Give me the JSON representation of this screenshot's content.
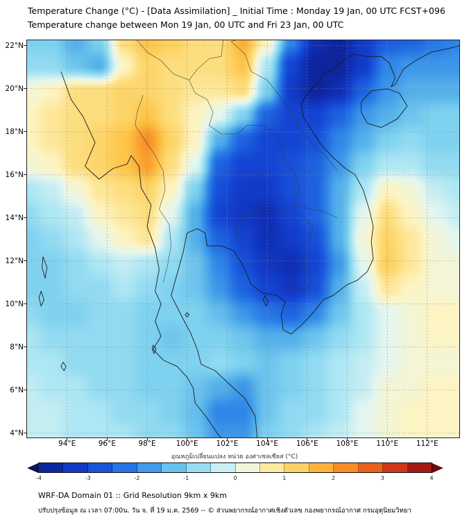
{
  "header": {
    "title_line1": "Temperature Change (°C) - [Data Assimilation] _ Initial Time : Monday 19 Jan, 00 UTC FCST+096",
    "title_line2": "Temperature change between Mon 19 Jan, 00 UTC and Fri 23 Jan, 00 UTC"
  },
  "footer": {
    "line1": "WRF-DA Domain 01 :: Grid Resolution 9km x 9km",
    "line2": "ปรับปรุงข้อมูล ณ เวลา 07:00น. วัน จ. ที่ 19 ม.ค. 2569 -- © ส่วนพยากรณ์อากาศเชิงตัวเลข กองพยากรณ์อากาศ กรมอุตุนิยมวิทยา"
  },
  "chart_data": {
    "type": "heatmap",
    "title": "Temperature change between Mon 19 Jan, 00 UTC and Fri 23 Jan, 00 UTC",
    "xlabel": "",
    "ylabel": "",
    "x_axis": {
      "tick_values": [
        94,
        96,
        98,
        100,
        102,
        104,
        106,
        108,
        110,
        112
      ],
      "tick_labels": [
        "94°E",
        "96°E",
        "98°E",
        "100°E",
        "102°E",
        "104°E",
        "106°E",
        "108°E",
        "110°E",
        "112°E"
      ],
      "range": [
        92.0,
        113.6
      ]
    },
    "y_axis": {
      "tick_values": [
        4,
        6,
        8,
        10,
        12,
        14,
        16,
        18,
        20,
        22
      ],
      "tick_labels": [
        "4°N",
        "6°N",
        "8°N",
        "10°N",
        "12°N",
        "14°N",
        "16°N",
        "18°N",
        "20°N",
        "22°N"
      ],
      "range": [
        3.8,
        22.25
      ]
    },
    "grid": {
      "lon_min": 92.0,
      "lon_max": 113.6,
      "lat_top": 22.25,
      "lat_bottom": 3.8,
      "ncols": 19,
      "nrows": 17,
      "units": "°C",
      "values": [
        [
          -1,
          -1,
          -1.5,
          -1,
          1,
          1.5,
          1.3,
          1,
          1,
          1.8,
          0.5,
          -2,
          -3.5,
          -3.8,
          -3.2,
          -2.6,
          -2.5,
          -2.2,
          -2
        ],
        [
          -0.8,
          -0.8,
          -1.2,
          -1.5,
          0.5,
          1.2,
          1,
          1,
          1,
          1.5,
          -0.5,
          -3,
          -3.8,
          -3.8,
          -3.2,
          -2,
          -1.8,
          -1.8,
          -1.8
        ],
        [
          0.3,
          0.5,
          1,
          1,
          1.2,
          1.2,
          1,
          0.8,
          0.8,
          1,
          -1,
          -3.2,
          -3.8,
          -3.5,
          -2.5,
          -1.8,
          -1.5,
          -1.5,
          -1.5
        ],
        [
          0.5,
          0.8,
          1,
          1,
          1.2,
          1.5,
          1,
          0.5,
          0,
          -1,
          -2.5,
          -3,
          -3,
          -2.5,
          -1.8,
          -1.5,
          -1.2,
          -1,
          -1
        ],
        [
          0.5,
          0.8,
          1,
          1.2,
          1.5,
          2.2,
          1.2,
          0.5,
          -1.5,
          -2.5,
          -3,
          -3,
          -2.8,
          -2,
          -1.5,
          -1,
          -0.8,
          -1,
          -1
        ],
        [
          0.3,
          0.5,
          1,
          1.2,
          1.5,
          2,
          1,
          0,
          -2.5,
          -3,
          -3,
          -2.8,
          -2.5,
          -1.8,
          -1,
          -0.5,
          -0.5,
          -0.8,
          -0.8
        ],
        [
          -0.5,
          -0.3,
          0.3,
          0.8,
          1,
          1.2,
          0.5,
          -1,
          -2.8,
          -3.2,
          -3.2,
          -2.8,
          -2.5,
          -1.5,
          -0.5,
          0.5,
          0.3,
          -0.3,
          -0.5
        ],
        [
          -0.8,
          -0.5,
          -0.3,
          0.5,
          0.8,
          1,
          0,
          -1.5,
          -3,
          -3.3,
          -3.5,
          -3,
          -2.5,
          -1.5,
          0,
          1,
          0.5,
          0,
          -0.3
        ],
        [
          -1,
          -0.8,
          -0.5,
          0,
          0.5,
          0.8,
          -0.5,
          -1.5,
          -2.5,
          -3,
          -3.5,
          -3.2,
          -2.8,
          -1.5,
          0.3,
          1.2,
          0.8,
          0.3,
          0
        ],
        [
          -1,
          -1,
          -0.8,
          -0.5,
          -0.3,
          -0.5,
          -0.8,
          -1.2,
          -2,
          -2.8,
          -3.3,
          -3.5,
          -3,
          -1.8,
          0,
          1.3,
          0.8,
          0.3,
          0.3
        ],
        [
          -1,
          -1,
          -0.8,
          -0.8,
          -0.5,
          -0.8,
          -1,
          -1.2,
          -1.8,
          -2.5,
          -3,
          -3.3,
          -2.8,
          -1.5,
          -0.3,
          0.8,
          0.5,
          0.3,
          0.3
        ],
        [
          -0.8,
          -1,
          -1,
          -0.8,
          -0.8,
          -1,
          -1,
          -1,
          -1.3,
          -1.8,
          -2.2,
          -2.5,
          -2,
          -1.2,
          -0.5,
          0,
          0.3,
          0.5,
          0.5
        ],
        [
          -0.5,
          -0.8,
          -0.8,
          -0.8,
          -0.8,
          -1,
          -1.2,
          -1,
          -1,
          -1.2,
          -1.5,
          -1.5,
          -1.2,
          -0.8,
          -0.5,
          0,
          0.3,
          0.5,
          0.5
        ],
        [
          -0.5,
          -0.5,
          -0.8,
          -0.8,
          -0.8,
          -1,
          -1,
          -1,
          -0.8,
          -1,
          -1.2,
          -1,
          -0.8,
          -0.5,
          -0.3,
          0,
          0.3,
          0.3,
          0.3
        ],
        [
          -0.3,
          -0.5,
          -0.5,
          -0.8,
          -0.8,
          -1,
          -1,
          -1.2,
          -1.5,
          -1.8,
          -1.2,
          -1,
          -0.8,
          -0.5,
          -0.3,
          0.3,
          0.3,
          0.5,
          0.5
        ],
        [
          -0.3,
          -0.3,
          -0.5,
          -0.5,
          -0.8,
          -0.8,
          -1,
          -1.3,
          -2,
          -2,
          -1.2,
          -0.8,
          -0.8,
          -0.5,
          0,
          0.3,
          0.5,
          0.5,
          0.5
        ],
        [
          -0.3,
          -0.3,
          -0.5,
          -0.5,
          -0.5,
          -0.8,
          -0.8,
          -1.2,
          -1.8,
          -1.8,
          -1,
          -0.8,
          -0.5,
          -0.3,
          0,
          0.3,
          0.5,
          0.5,
          0.5
        ]
      ]
    },
    "colorbar": {
      "label": "อุณหภูมิเปลี่ยนแปลง หน่วย องศาเซลเซียส (°C)",
      "min": -4,
      "max": 4,
      "step": 0.5,
      "tick_labels": [
        "-4",
        "-3",
        "-2",
        "-1",
        "0",
        "1",
        "2",
        "3",
        "4"
      ],
      "tick_values": [
        -4,
        -3,
        -2,
        -1,
        0,
        1,
        2,
        3,
        4
      ],
      "under_color": "#071457",
      "over_color": "#70090e",
      "stops": [
        {
          "v": -4.0,
          "c": "#0b1e8c"
        },
        {
          "v": -3.5,
          "c": "#0f2fb4"
        },
        {
          "v": -3.0,
          "c": "#1444d2"
        },
        {
          "v": -2.5,
          "c": "#1e62e0"
        },
        {
          "v": -2.0,
          "c": "#2f86e8"
        },
        {
          "v": -1.5,
          "c": "#55b0ea"
        },
        {
          "v": -1.0,
          "c": "#7fd2ef"
        },
        {
          "v": -0.5,
          "c": "#aee7f4"
        },
        {
          "v": 0.0,
          "c": "#e4f6f0"
        },
        {
          "v": 0.5,
          "c": "#fdf4c4"
        },
        {
          "v": 1.0,
          "c": "#fdde7e"
        },
        {
          "v": 1.5,
          "c": "#fdc64b"
        },
        {
          "v": 2.0,
          "c": "#fba02f"
        },
        {
          "v": 2.5,
          "c": "#f47721"
        },
        {
          "v": 3.0,
          "c": "#e04a1c"
        },
        {
          "v": 3.5,
          "c": "#bc2417"
        },
        {
          "v": 4.0,
          "c": "#8c0f12"
        }
      ]
    },
    "grid_lines": {
      "on": true,
      "style": "dotted"
    },
    "coastlines": [
      [
        [
          93.7,
          20.8
        ],
        [
          94.2,
          19.5
        ],
        [
          94.8,
          18.7
        ],
        [
          95.4,
          17.5
        ],
        [
          94.9,
          16.4
        ],
        [
          95.6,
          15.8
        ],
        [
          96.3,
          16.3
        ],
        [
          97.0,
          16.5
        ],
        [
          97.2,
          16.9
        ],
        [
          97.6,
          16.4
        ],
        [
          97.7,
          15.4
        ],
        [
          98.2,
          14.6
        ],
        [
          98.0,
          13.6
        ],
        [
          98.4,
          12.6
        ],
        [
          98.6,
          11.6
        ],
        [
          98.4,
          10.6
        ],
        [
          98.7,
          10.0
        ],
        [
          98.4,
          9.2
        ],
        [
          98.7,
          8.5
        ],
        [
          98.3,
          7.9
        ],
        [
          98.8,
          7.4
        ],
        [
          99.5,
          7.1
        ],
        [
          100.0,
          6.6
        ],
        [
          100.3,
          6.1
        ],
        [
          100.4,
          5.4
        ],
        [
          101.0,
          4.7
        ],
        [
          101.5,
          4.0
        ],
        [
          101.7,
          3.8
        ]
      ],
      [
        [
          103.5,
          3.8
        ],
        [
          103.4,
          4.8
        ],
        [
          102.9,
          5.6
        ],
        [
          102.2,
          6.2
        ],
        [
          101.4,
          6.9
        ],
        [
          100.7,
          7.2
        ],
        [
          100.5,
          7.9
        ],
        [
          100.2,
          8.6
        ],
        [
          99.8,
          9.3
        ],
        [
          99.2,
          10.4
        ],
        [
          99.5,
          11.4
        ],
        [
          99.8,
          12.4
        ],
        [
          100.0,
          13.3
        ],
        [
          100.5,
          13.5
        ],
        [
          100.9,
          13.3
        ],
        [
          101.0,
          12.7
        ],
        [
          101.7,
          12.7
        ],
        [
          102.3,
          12.5
        ],
        [
          102.8,
          11.8
        ],
        [
          103.2,
          10.9
        ],
        [
          103.8,
          10.5
        ],
        [
          104.5,
          10.4
        ],
        [
          104.9,
          10.1
        ],
        [
          104.7,
          9.5
        ],
        [
          104.8,
          8.8
        ],
        [
          105.2,
          8.6
        ],
        [
          105.8,
          9.1
        ],
        [
          106.3,
          9.6
        ],
        [
          106.8,
          10.2
        ],
        [
          107.3,
          10.4
        ],
        [
          108.0,
          10.9
        ],
        [
          108.5,
          11.1
        ],
        [
          109.0,
          11.5
        ],
        [
          109.3,
          12.1
        ],
        [
          109.2,
          12.9
        ],
        [
          109.3,
          13.6
        ],
        [
          109.1,
          14.4
        ],
        [
          108.8,
          15.3
        ],
        [
          108.4,
          16.0
        ],
        [
          107.9,
          16.3
        ],
        [
          107.3,
          16.8
        ],
        [
          106.7,
          17.4
        ],
        [
          106.2,
          18.1
        ],
        [
          105.8,
          18.7
        ],
        [
          105.7,
          19.3
        ],
        [
          106.1,
          19.9
        ],
        [
          106.6,
          20.3
        ],
        [
          106.8,
          20.7
        ],
        [
          107.3,
          20.9
        ],
        [
          107.8,
          21.3
        ],
        [
          108.3,
          21.6
        ]
      ],
      [
        [
          108.3,
          21.6
        ],
        [
          109.0,
          21.5
        ],
        [
          109.7,
          21.5
        ],
        [
          110.1,
          21.2
        ],
        [
          110.4,
          20.5
        ],
        [
          110.2,
          20.1
        ],
        [
          110.4,
          20.2
        ],
        [
          110.8,
          20.9
        ],
        [
          111.4,
          21.3
        ],
        [
          112.2,
          21.7
        ],
        [
          113.2,
          21.9
        ],
        [
          113.6,
          22.0
        ]
      ],
      [
        [
          108.7,
          19.4
        ],
        [
          109.2,
          19.9
        ],
        [
          110.0,
          20.0
        ],
        [
          110.6,
          19.8
        ],
        [
          111.0,
          19.2
        ],
        [
          110.5,
          18.6
        ],
        [
          109.7,
          18.2
        ],
        [
          109.0,
          18.4
        ],
        [
          108.7,
          18.9
        ],
        [
          108.7,
          19.4
        ]
      ],
      [
        [
          98.3,
          8.1
        ],
        [
          98.45,
          7.9
        ],
        [
          98.35,
          7.7
        ],
        [
          98.25,
          7.9
        ],
        [
          98.3,
          8.1
        ]
      ],
      [
        [
          92.8,
          12.2
        ],
        [
          93.0,
          11.7
        ],
        [
          92.9,
          11.2
        ],
        [
          92.75,
          11.7
        ],
        [
          92.8,
          12.2
        ]
      ],
      [
        [
          92.7,
          10.6
        ],
        [
          92.85,
          10.2
        ],
        [
          92.7,
          9.9
        ],
        [
          92.6,
          10.3
        ],
        [
          92.7,
          10.6
        ]
      ],
      [
        [
          93.8,
          7.3
        ],
        [
          93.95,
          7.1
        ],
        [
          93.85,
          6.9
        ],
        [
          93.7,
          7.1
        ],
        [
          93.8,
          7.3
        ]
      ],
      [
        [
          100.0,
          9.6
        ],
        [
          100.1,
          9.5
        ],
        [
          100.0,
          9.4
        ],
        [
          99.9,
          9.5
        ],
        [
          100.0,
          9.6
        ]
      ],
      [
        [
          103.9,
          10.4
        ],
        [
          104.05,
          10.1
        ],
        [
          103.95,
          9.9
        ],
        [
          103.8,
          10.2
        ],
        [
          103.9,
          10.4
        ]
      ]
    ],
    "borders": [
      [
        [
          97.8,
          19.7
        ],
        [
          97.5,
          18.9
        ],
        [
          97.4,
          18.3
        ],
        [
          97.9,
          17.6
        ],
        [
          98.4,
          16.9
        ],
        [
          98.8,
          16.2
        ],
        [
          98.9,
          15.3
        ],
        [
          98.6,
          14.4
        ],
        [
          99.1,
          13.7
        ],
        [
          99.2,
          12.7
        ],
        [
          99.0,
          11.7
        ],
        [
          98.8,
          11.0
        ]
      ],
      [
        [
          100.1,
          20.4
        ],
        [
          100.4,
          19.8
        ],
        [
          101.0,
          19.5
        ],
        [
          101.3,
          18.9
        ],
        [
          101.1,
          18.3
        ],
        [
          101.7,
          17.9
        ],
        [
          102.5,
          17.9
        ],
        [
          103.0,
          18.3
        ],
        [
          103.9,
          18.3
        ],
        [
          104.6,
          17.6
        ],
        [
          104.8,
          16.9
        ],
        [
          105.4,
          16.0
        ],
        [
          105.6,
          15.3
        ],
        [
          105.4,
          14.6
        ],
        [
          105.2,
          14.3
        ]
      ],
      [
        [
          105.2,
          14.3
        ],
        [
          104.3,
          14.4
        ],
        [
          103.4,
          14.3
        ],
        [
          102.7,
          13.9
        ],
        [
          102.4,
          13.5
        ],
        [
          102.5,
          12.9
        ],
        [
          102.8,
          12.5
        ]
      ],
      [
        [
          102.2,
          22.2
        ],
        [
          102.9,
          21.6
        ],
        [
          103.2,
          20.8
        ],
        [
          104.0,
          20.4
        ],
        [
          104.6,
          19.7
        ],
        [
          105.1,
          19.0
        ],
        [
          105.6,
          18.2
        ],
        [
          106.3,
          17.4
        ],
        [
          106.9,
          16.9
        ],
        [
          107.5,
          16.2
        ]
      ],
      [
        [
          102.2,
          22.2
        ],
        [
          103.0,
          22.4
        ],
        [
          104.0,
          22.7
        ],
        [
          104.9,
          22.9
        ],
        [
          105.9,
          22.9
        ],
        [
          106.6,
          22.0
        ],
        [
          107.2,
          21.7
        ],
        [
          108.0,
          21.6
        ]
      ],
      [
        [
          105.2,
          14.3
        ],
        [
          105.9,
          14.0
        ],
        [
          106.3,
          13.5
        ],
        [
          106.0,
          12.8
        ],
        [
          105.8,
          11.9
        ],
        [
          106.2,
          11.0
        ],
        [
          105.9,
          10.6
        ],
        [
          105.3,
          10.9
        ],
        [
          104.9,
          10.5
        ]
      ],
      [
        [
          97.5,
          22.25
        ],
        [
          98.0,
          21.7
        ],
        [
          98.7,
          21.3
        ],
        [
          99.3,
          20.7
        ],
        [
          100.1,
          20.4
        ],
        [
          100.5,
          20.9
        ],
        [
          101.1,
          21.4
        ],
        [
          101.7,
          21.5
        ],
        [
          101.8,
          22.25
        ]
      ],
      [
        [
          105.4,
          14.6
        ],
        [
          106.2,
          14.4
        ],
        [
          106.8,
          14.3
        ],
        [
          107.5,
          14.0
        ]
      ]
    ]
  }
}
